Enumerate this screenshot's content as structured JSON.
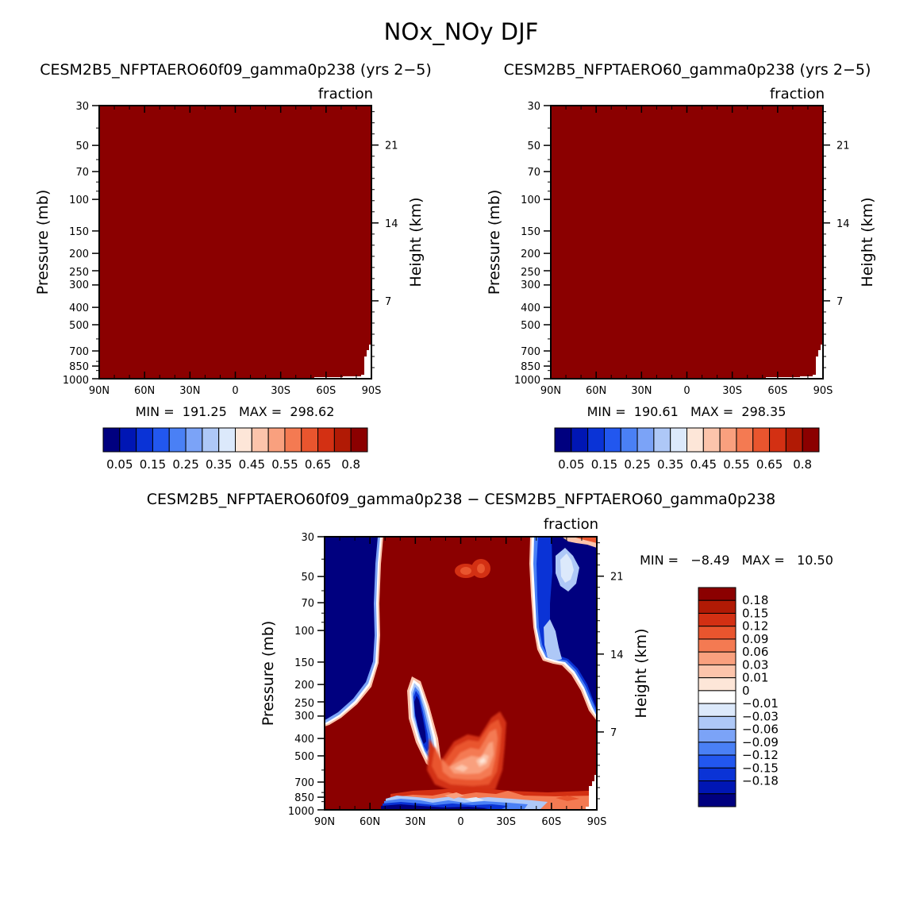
{
  "page_title": "NOx_NOy DJF",
  "colors": {
    "fill_dark_red": "#8b0000",
    "plot_border": "#000000",
    "background": "#ffffff"
  },
  "chart_data": [
    {
      "type": "heatmap",
      "title": "CESM2B5_NFPTAERO60f09_gamma0p238 (yrs 2−5)",
      "units": "fraction",
      "ylabel": "Pressure (mb)",
      "y2label": "Height (km)",
      "x_ticks": [
        "90N",
        "60N",
        "30N",
        "0",
        "30S",
        "60S",
        "90S"
      ],
      "y_ticks": [
        30,
        50,
        70,
        100,
        150,
        200,
        250,
        300,
        400,
        500,
        700,
        850,
        1000
      ],
      "y_scale": "log",
      "y2_ticks": [
        21,
        14,
        7
      ],
      "min_max_text": "MIN =  191.25   MAX =  298.62",
      "colorbar": {
        "orientation": "horizontal",
        "colors": [
          "#00007f",
          "#0016b4",
          "#0a33d6",
          "#2257ef",
          "#4a80f5",
          "#7ba3f7",
          "#aec8f7",
          "#dce9fb",
          "#fde6d8",
          "#fcc4ab",
          "#f9a07e",
          "#f47a52",
          "#e9552e",
          "#d33013",
          "#b11a05",
          "#8b0000"
        ],
        "labels": [
          "0.05",
          "0.15",
          "0.25",
          "0.35",
          "0.45",
          "0.55",
          "0.65",
          "0.8"
        ]
      },
      "field_value": "above 0.8 (entire domain)"
    },
    {
      "type": "heatmap",
      "title": "CESM2B5_NFPTAERO60_gamma0p238 (yrs 2−5)",
      "units": "fraction",
      "ylabel": "Pressure (mb)",
      "y2label": "Height (km)",
      "x_ticks": [
        "90N",
        "60N",
        "30N",
        "0",
        "30S",
        "60S",
        "90S"
      ],
      "y_ticks": [
        30,
        50,
        70,
        100,
        150,
        200,
        250,
        300,
        400,
        500,
        700,
        850,
        1000
      ],
      "y_scale": "log",
      "y2_ticks": [
        21,
        14,
        7
      ],
      "min_max_text": "MIN =  190.61   MAX =  298.35",
      "colorbar": {
        "orientation": "horizontal",
        "colors": [
          "#00007f",
          "#0016b4",
          "#0a33d6",
          "#2257ef",
          "#4a80f5",
          "#7ba3f7",
          "#aec8f7",
          "#dce9fb",
          "#fde6d8",
          "#fcc4ab",
          "#f9a07e",
          "#f47a52",
          "#e9552e",
          "#d33013",
          "#b11a05",
          "#8b0000"
        ],
        "labels": [
          "0.05",
          "0.15",
          "0.25",
          "0.35",
          "0.45",
          "0.55",
          "0.65",
          "0.8"
        ]
      },
      "field_value": "above 0.8 (entire domain)"
    },
    {
      "type": "heatmap",
      "title": "CESM2B5_NFPTAERO60f09_gamma0p238 − CESM2B5_NFPTAERO60_gamma0p238",
      "units": "fraction",
      "ylabel": "Pressure (mb)",
      "y2label": "Height (km)",
      "x_ticks": [
        "90N",
        "60N",
        "30N",
        "0",
        "30S",
        "60S",
        "90S"
      ],
      "y_ticks": [
        30,
        50,
        70,
        100,
        150,
        200,
        250,
        300,
        400,
        500,
        700,
        850,
        1000
      ],
      "y_scale": "log",
      "y2_ticks": [
        21,
        14,
        7
      ],
      "min_max_text": "MIN =   −8.49   MAX =   10.50",
      "colorbar": {
        "orientation": "vertical",
        "colors": [
          "#8b0000",
          "#b11a05",
          "#d33013",
          "#e9552e",
          "#f47a52",
          "#f9a07e",
          "#fcc4ab",
          "#fde6d8",
          "#ffffff",
          "#dce9fb",
          "#aec8f7",
          "#7ba3f7",
          "#4a80f5",
          "#2257ef",
          "#0a33d6",
          "#0016b4",
          "#00007f"
        ],
        "labels": [
          "0.18",
          "0.15",
          "0.12",
          "0.09",
          "0.06",
          "0.03",
          "0.01",
          "0",
          "−0.01",
          "−0.03",
          "−0.06",
          "−0.09",
          "−0.12",
          "−0.15",
          "−0.18"
        ]
      },
      "regions": [
        {
          "feature": "negative region",
          "lat_range": [
            "90N",
            "55N"
          ],
          "pressure_range": [
            30,
            300
          ],
          "value": "below −0.18"
        },
        {
          "feature": "negative region",
          "lat_range": [
            "55S",
            "90S"
          ],
          "pressure_range": [
            30,
            300
          ],
          "value": "below −0.18"
        },
        {
          "feature": "negative minimum",
          "lat_range": [
            "35N",
            "20N"
          ],
          "pressure_range": [
            200,
            500
          ],
          "value": "below −0.18"
        },
        {
          "feature": "positive region",
          "lat_range": [
            "30N",
            "25S"
          ],
          "pressure_range": [
            300,
            800
          ],
          "value": "0.01 to 0.18"
        },
        {
          "feature": "surface band",
          "lat_range": [
            "50N",
            "55S"
          ],
          "pressure_range": [
            850,
            1000
          ],
          "value": "mixed −0.18 to 0.18"
        },
        {
          "feature": "background",
          "lat_range": [
            "55N",
            "55S"
          ],
          "pressure_range": [
            30,
            1000
          ],
          "value": "above 0.18"
        }
      ]
    }
  ]
}
